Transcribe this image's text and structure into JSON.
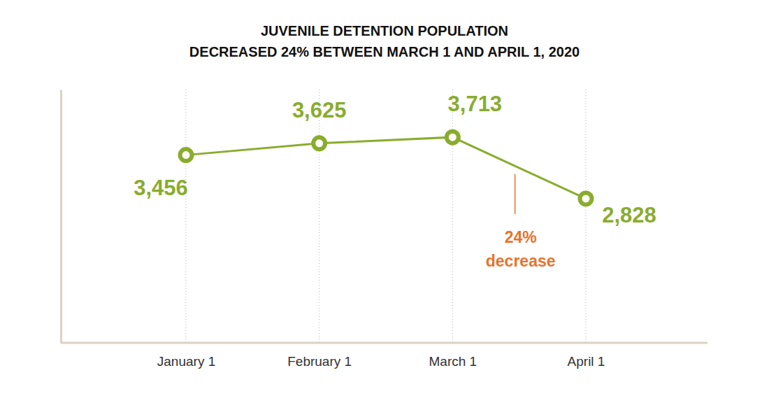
{
  "chart_data": {
    "type": "line",
    "title": [
      "JUVENILE DETENTION POPULATION",
      "DECREASED 24% BETWEEN MARCH 1 AND APRIL 1, 2020"
    ],
    "categories": [
      "January 1",
      "February 1",
      "March 1",
      "April 1"
    ],
    "values": [
      3456,
      3625,
      3713,
      2828
    ],
    "value_labels": [
      "3,456",
      "3,625",
      "3,713",
      "2,828"
    ],
    "data_labels": true,
    "color": "#8aac2e",
    "marker": "circle",
    "line_style": "solid",
    "ylim": [
      750,
      4400
    ],
    "grid": true,
    "tick_labels": "x",
    "annotation": [
      "24%",
      "decrease"
    ]
  }
}
